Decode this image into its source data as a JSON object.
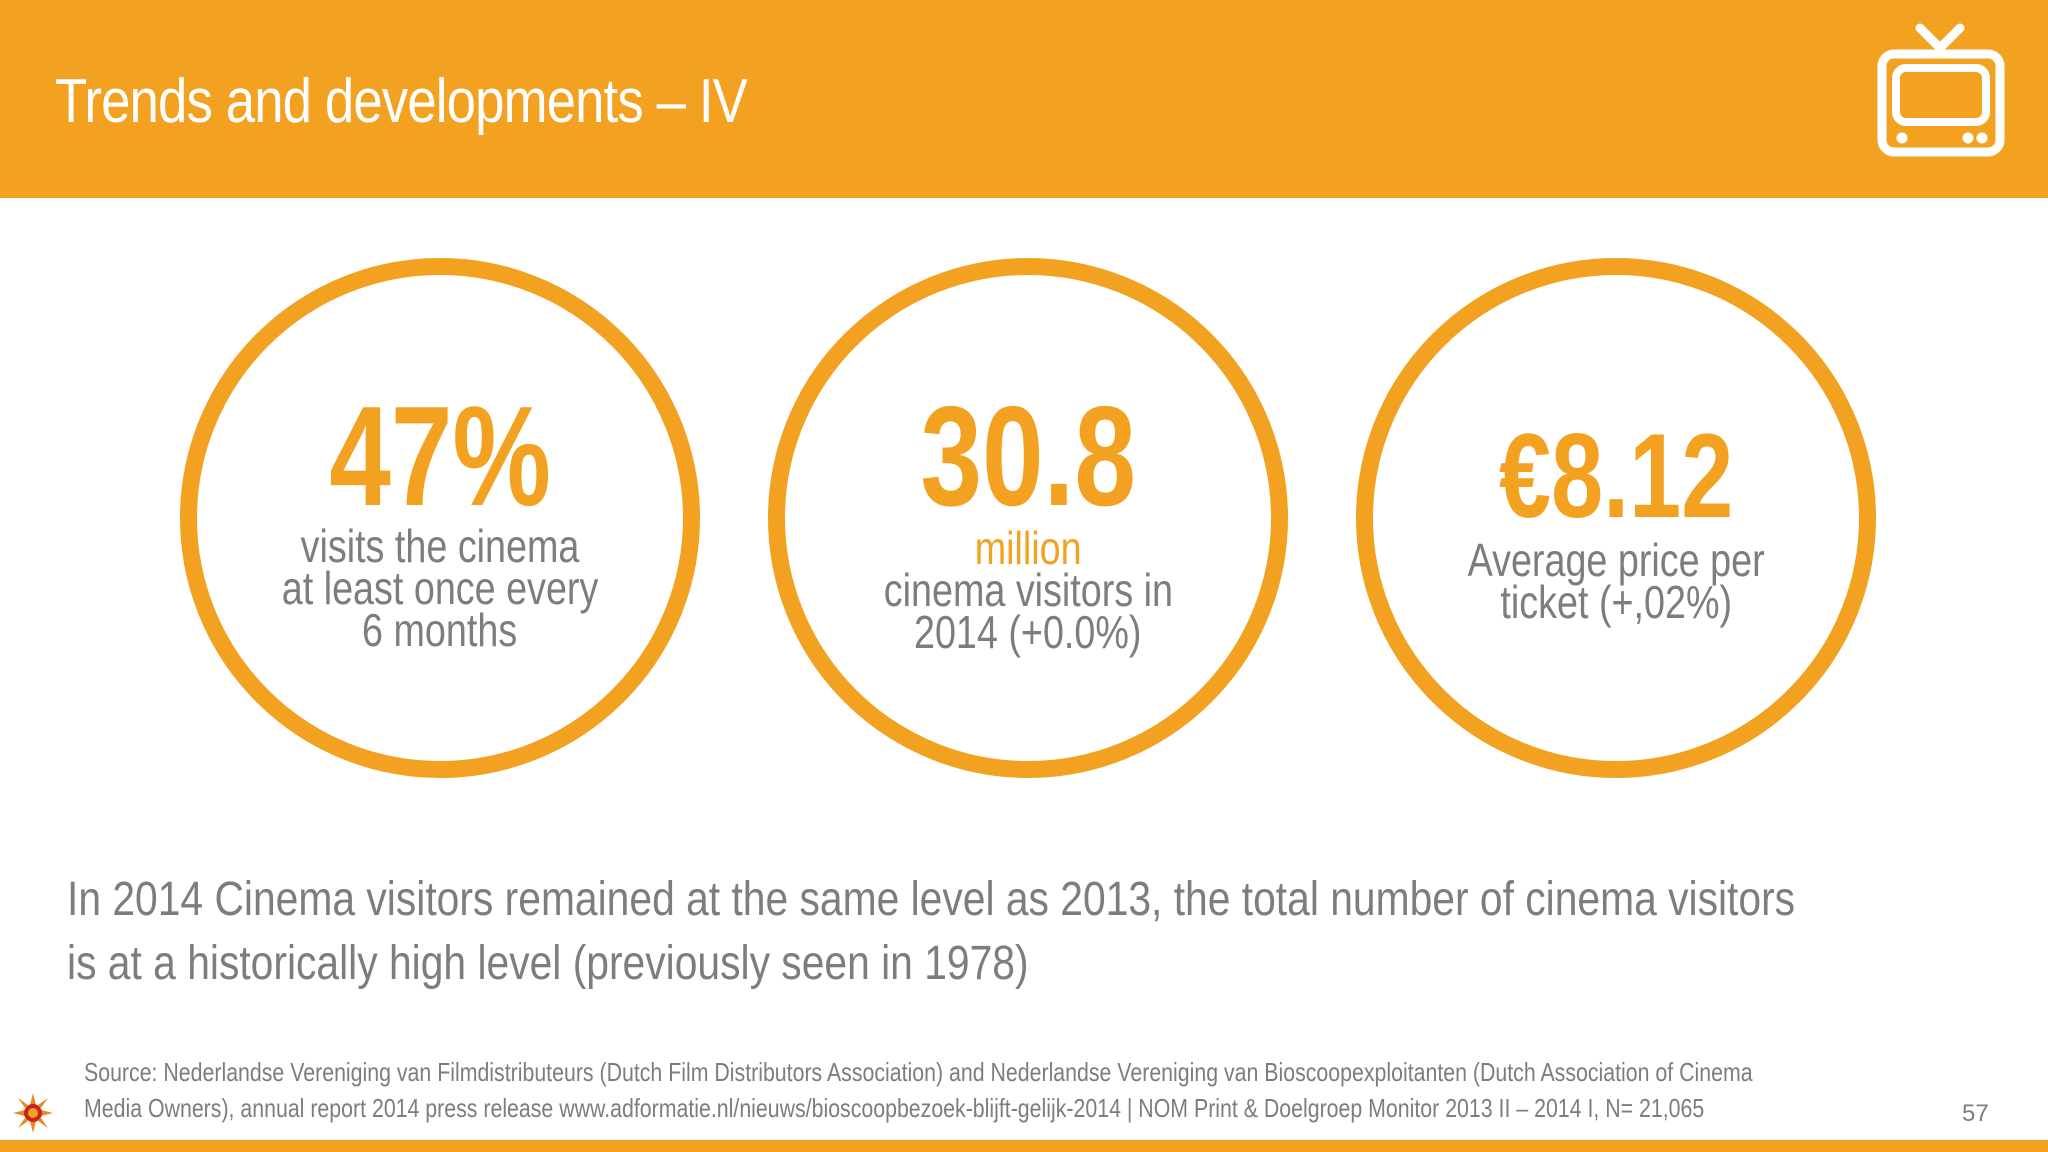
{
  "header": {
    "title": "Trends and developments – IV",
    "icon": "tv-icon",
    "background_color": "#F3A120"
  },
  "stats": [
    {
      "value": "47%",
      "unit": "",
      "description_lines": [
        "visits the cinema",
        "at least once every",
        "6 months"
      ]
    },
    {
      "value": "30.8",
      "unit": "million",
      "description_lines": [
        "cinema visitors in",
        "2014 (+0.0%)"
      ]
    },
    {
      "value": "€8.12",
      "unit": "",
      "description_lines": [
        "Average price per",
        "ticket (+,02%)"
      ]
    }
  ],
  "summary_lines": [
    "In 2014 Cinema visitors remained at the same level as 2013, the total number of cinema visitors",
    "is at a historically high level (previously seen in 1978)"
  ],
  "source_lines": [
    "Source: Nederlandse Vereniging van Filmdistributeurs  (Dutch Film Distributors Association) and Nederlandse Vereniging van Bioscoopexploitanten (Dutch Association of Cinema",
    "Media Owners), annual report 2014 press release www.adformatie.nl/nieuws/bioscoopbezoek-blijft-gelijk-2014 | NOM Print & Doelgroep Monitor 2013 II – 2014 I, N= 21,065"
  ],
  "page_number": "57",
  "logo_icon": "sun-logo-icon",
  "accent_color": "#F3A120",
  "text_color": "#7d7d7d"
}
